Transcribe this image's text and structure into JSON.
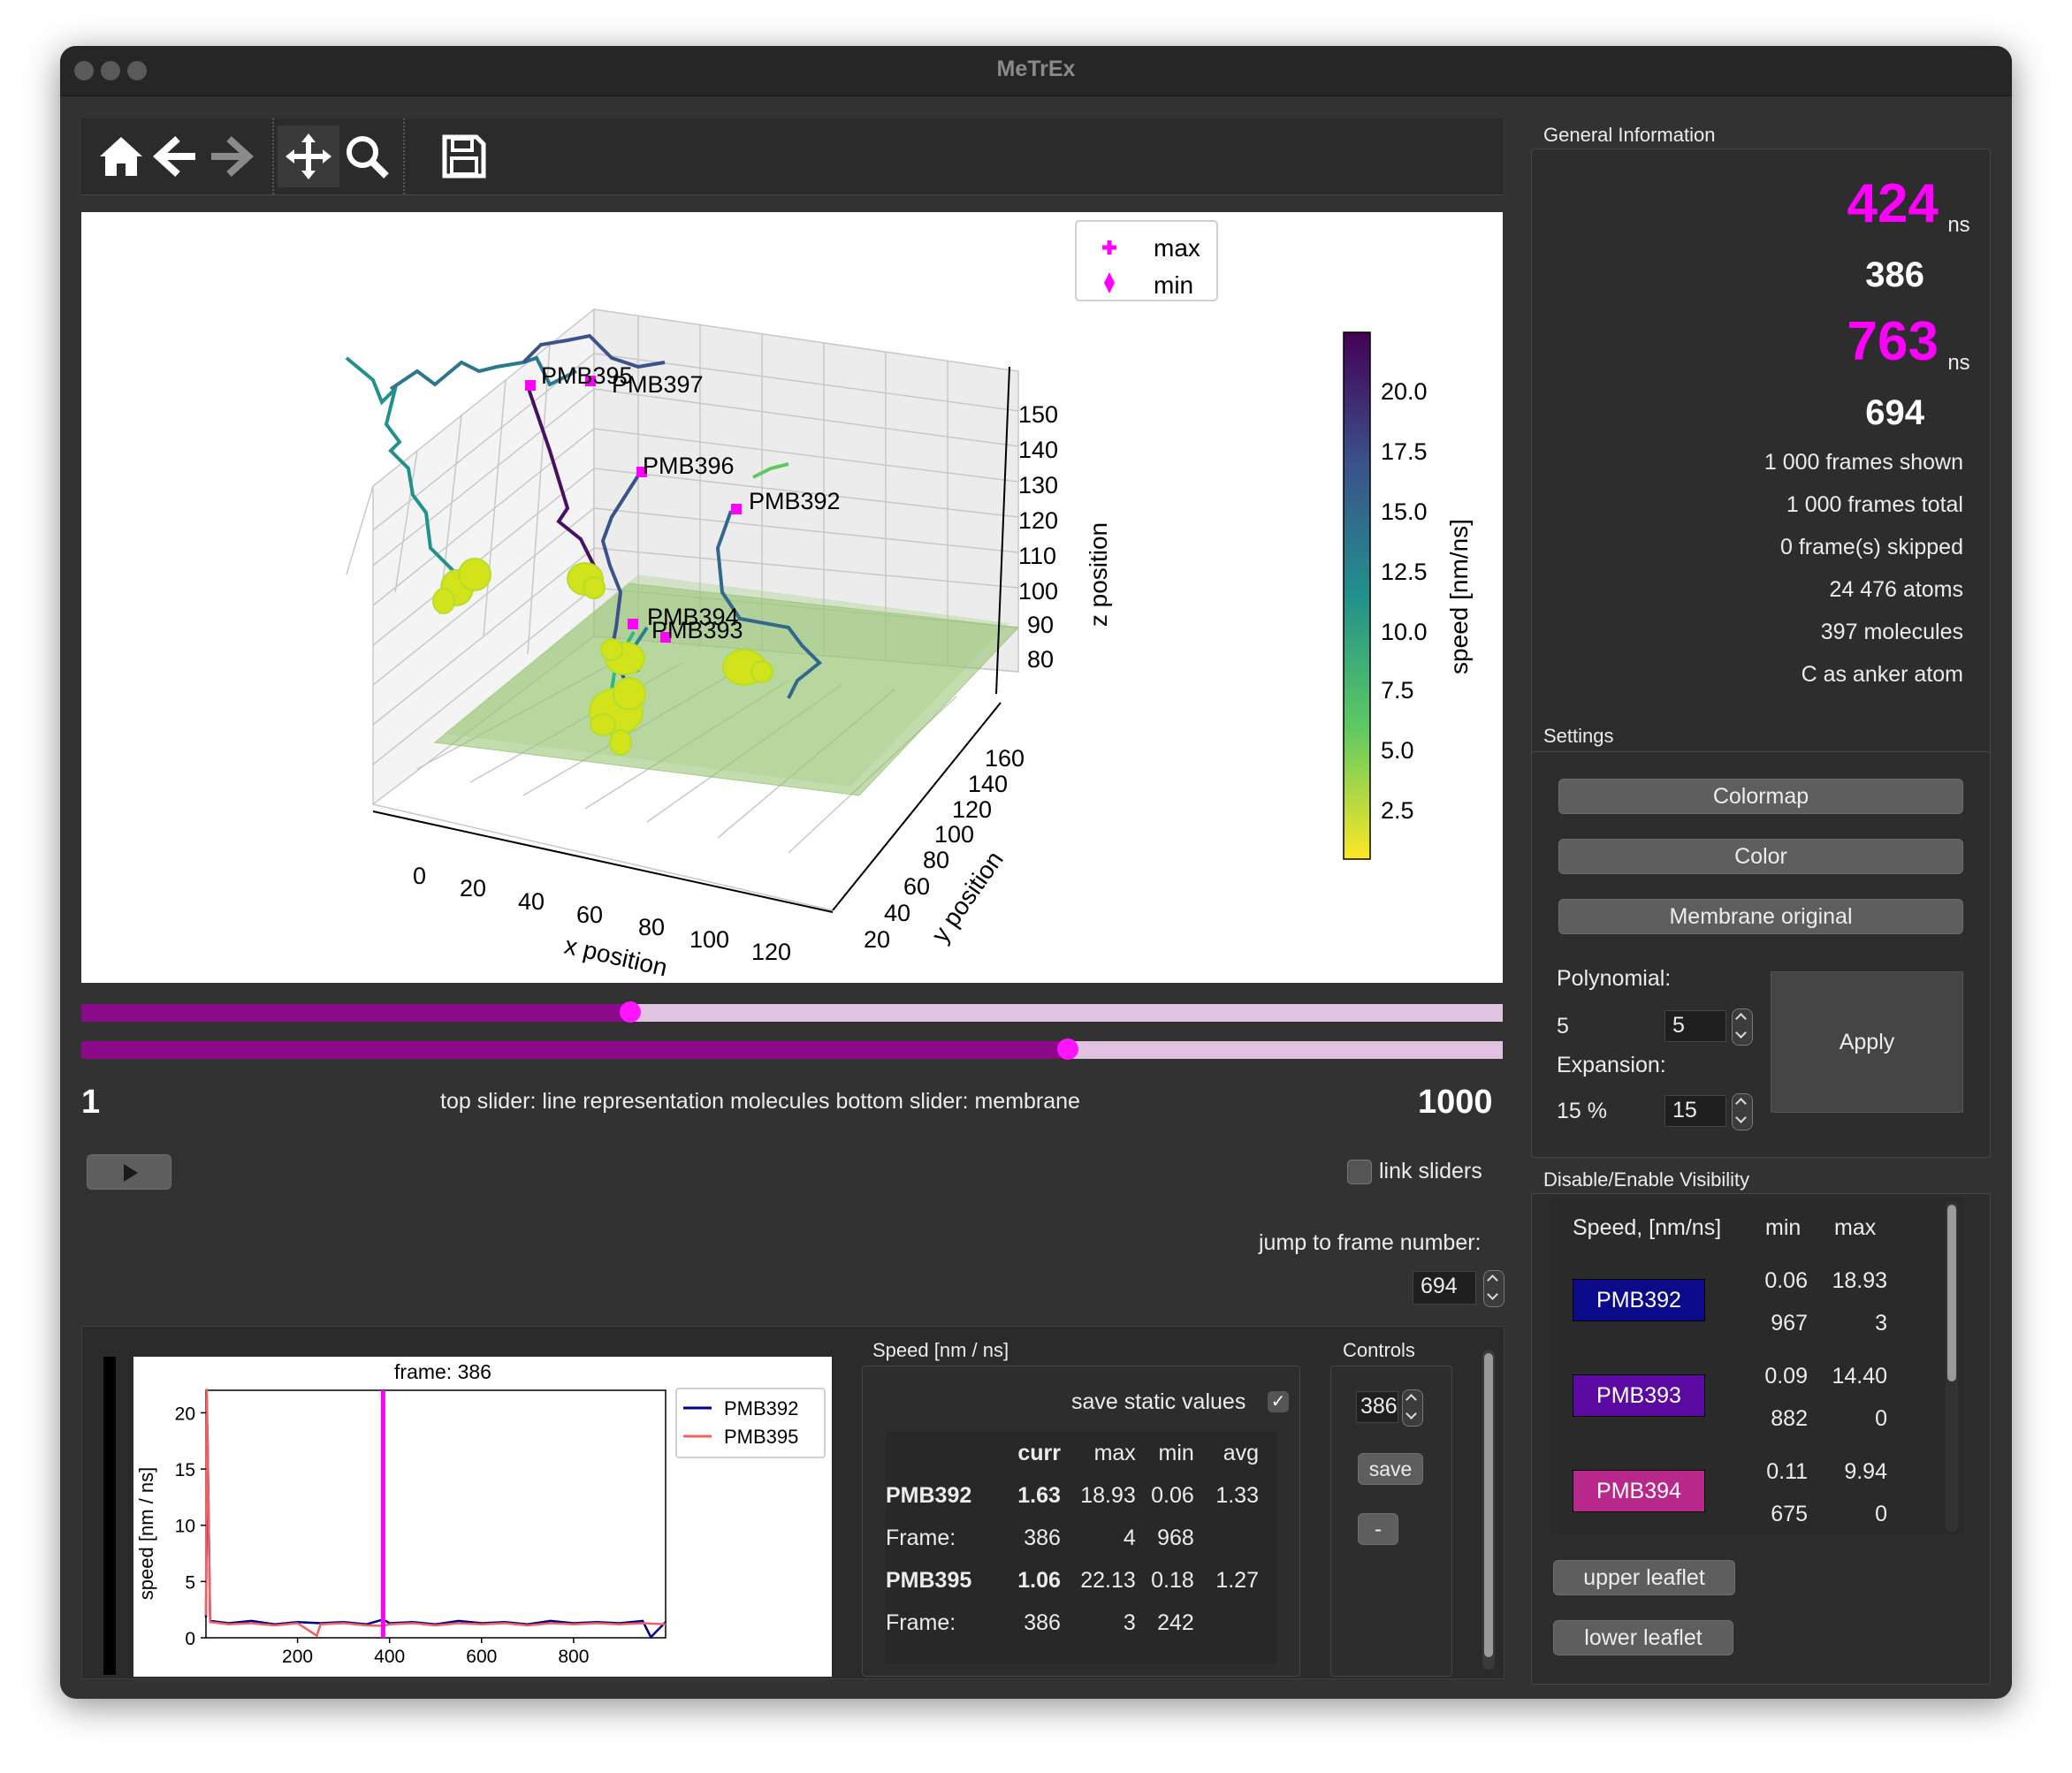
{
  "window": {
    "title": "MeTrEx"
  },
  "toolbar": {
    "icons": [
      "home-icon",
      "back-arrow-icon",
      "forward-arrow-icon",
      "pan-move-icon",
      "zoom-magnifier-icon",
      "save-disk-icon"
    ]
  },
  "plot3d": {
    "legend": {
      "max_label": "max",
      "min_label": "min"
    },
    "xlabel": "x position",
    "ylabel": "y position",
    "zlabel": "z position",
    "colorbar_label": "speed [nm/ns]",
    "x_ticks": [
      "0",
      "20",
      "40",
      "60",
      "80",
      "100",
      "120"
    ],
    "y_ticks": [
      "20",
      "40",
      "60",
      "80",
      "100",
      "120",
      "140",
      "160"
    ],
    "z_ticks": [
      "80",
      "90",
      "100",
      "110",
      "120",
      "130",
      "140",
      "150"
    ],
    "colorbar_ticks": [
      "2.5",
      "5.0",
      "7.5",
      "10.0",
      "12.5",
      "15.0",
      "17.5",
      "20.0"
    ],
    "molecule_labels": [
      "PMB395",
      "PMB397",
      "PMB396",
      "PMB392",
      "PMB394",
      "PMB393"
    ],
    "marker_color": "#ff00ff",
    "membrane_color": "#8fbf6a"
  },
  "sliders": {
    "top_value": 0.386,
    "bottom_value": 0.694,
    "start_label": "1",
    "end_label": "1000",
    "caption": "top slider: line representation molecules   bottom slider: membrane",
    "link_label": "link sliders",
    "jump_label": "jump to frame number:",
    "jump_value": "694"
  },
  "speed_chart": {
    "title": "frame: 386",
    "ylabel": "speed [nm / ns]",
    "x_ticks": [
      "200",
      "400",
      "600",
      "800"
    ],
    "y_ticks": [
      "0",
      "5",
      "10",
      "15",
      "20"
    ],
    "legend": [
      "PMB392",
      "PMB395"
    ],
    "colors": {
      "PMB392": "#00008b",
      "PMB395": "#f06060",
      "marker": "#ff00ff"
    }
  },
  "chart_data": {
    "type": "line",
    "title": "frame: 386",
    "xlabel": "",
    "ylabel": "speed [nm / ns]",
    "xlim": [
      1,
      1000
    ],
    "ylim": [
      0,
      22
    ],
    "series": [
      {
        "name": "PMB392",
        "x": [
          1,
          4,
          10,
          50,
          100,
          150,
          200,
          250,
          300,
          350,
          386,
          400,
          450,
          500,
          550,
          600,
          650,
          700,
          750,
          800,
          850,
          900,
          950,
          968,
          1000
        ],
        "y": [
          1.8,
          18.93,
          1.5,
          1.3,
          1.5,
          1.2,
          1.4,
          1.3,
          1.4,
          1.2,
          1.63,
          1.3,
          1.4,
          1.2,
          1.5,
          1.3,
          1.4,
          1.2,
          1.5,
          1.3,
          1.4,
          1.3,
          1.5,
          0.06,
          1.4
        ]
      },
      {
        "name": "PMB395",
        "x": [
          1,
          3,
          10,
          50,
          100,
          150,
          200,
          242,
          250,
          300,
          350,
          386,
          400,
          450,
          500,
          550,
          600,
          650,
          700,
          750,
          800,
          850,
          900,
          950,
          1000
        ],
        "y": [
          2.0,
          22.13,
          1.4,
          1.2,
          1.3,
          1.1,
          1.3,
          0.18,
          1.2,
          1.3,
          1.1,
          1.06,
          1.2,
          1.3,
          1.1,
          1.3,
          1.2,
          1.3,
          1.1,
          1.3,
          1.2,
          1.3,
          1.2,
          1.3,
          1.2
        ]
      }
    ],
    "marker_x": 386
  },
  "speed_table": {
    "group_title": "Speed [nm / ns]",
    "save_static_label": "save static values",
    "headers": [
      "curr",
      "max",
      "min",
      "avg"
    ],
    "rows": [
      {
        "name": "PMB392",
        "curr": "1.63",
        "max": "18.93",
        "min": "0.06",
        "avg": "1.33",
        "frame_label": "Frame:",
        "frame_curr": "386",
        "frame_max": "4",
        "frame_min": "968"
      },
      {
        "name": "PMB395",
        "curr": "1.06",
        "max": "22.13",
        "min": "0.18",
        "avg": "1.27",
        "frame_label": "Frame:",
        "frame_curr": "386",
        "frame_max": "3",
        "frame_min": "242"
      }
    ]
  },
  "controls": {
    "title": "Controls",
    "frame_value": "386",
    "save_label": "save",
    "minus_label": "-"
  },
  "general_info": {
    "title": "General Information",
    "max_time": "424",
    "max_unit": "ns",
    "max_frame": "386",
    "min_time": "763",
    "min_unit": "ns",
    "min_frame": "694",
    "lines": [
      "1 000 frames shown",
      "1 000 frames total",
      "0 frame(s) skipped",
      "24 476 atoms",
      "397 molecules",
      "C as anker atom"
    ],
    "highlight_color": "#ff00ff"
  },
  "settings": {
    "title": "Settings",
    "colormap_label": "Colormap",
    "color_label": "Color",
    "membrane_label": "Membrane original",
    "polynomial_label": "Polynomial:",
    "polynomial_current": "5",
    "polynomial_value": "5",
    "expansion_label": "Expansion:",
    "expansion_current": "15 %",
    "expansion_value": "15",
    "apply_label": "Apply"
  },
  "visibility": {
    "title": "Disable/Enable Visibility",
    "header_speed": "Speed, [nm/ns]",
    "header_min": "min",
    "header_max": "max",
    "items": [
      {
        "name": "PMB392",
        "color": "#0a0a8a",
        "min": "0.06",
        "max": "18.93",
        "min_frame": "967",
        "max_frame": "3"
      },
      {
        "name": "PMB393",
        "color": "#5a0aa0",
        "min": "0.09",
        "max": "14.40",
        "min_frame": "882",
        "max_frame": "0"
      },
      {
        "name": "PMB394",
        "color": "#b8288a",
        "min": "0.11",
        "max": "9.94",
        "min_frame": "675",
        "max_frame": "0"
      }
    ],
    "upper_label": "upper leaflet",
    "lower_label": "lower leaflet"
  }
}
